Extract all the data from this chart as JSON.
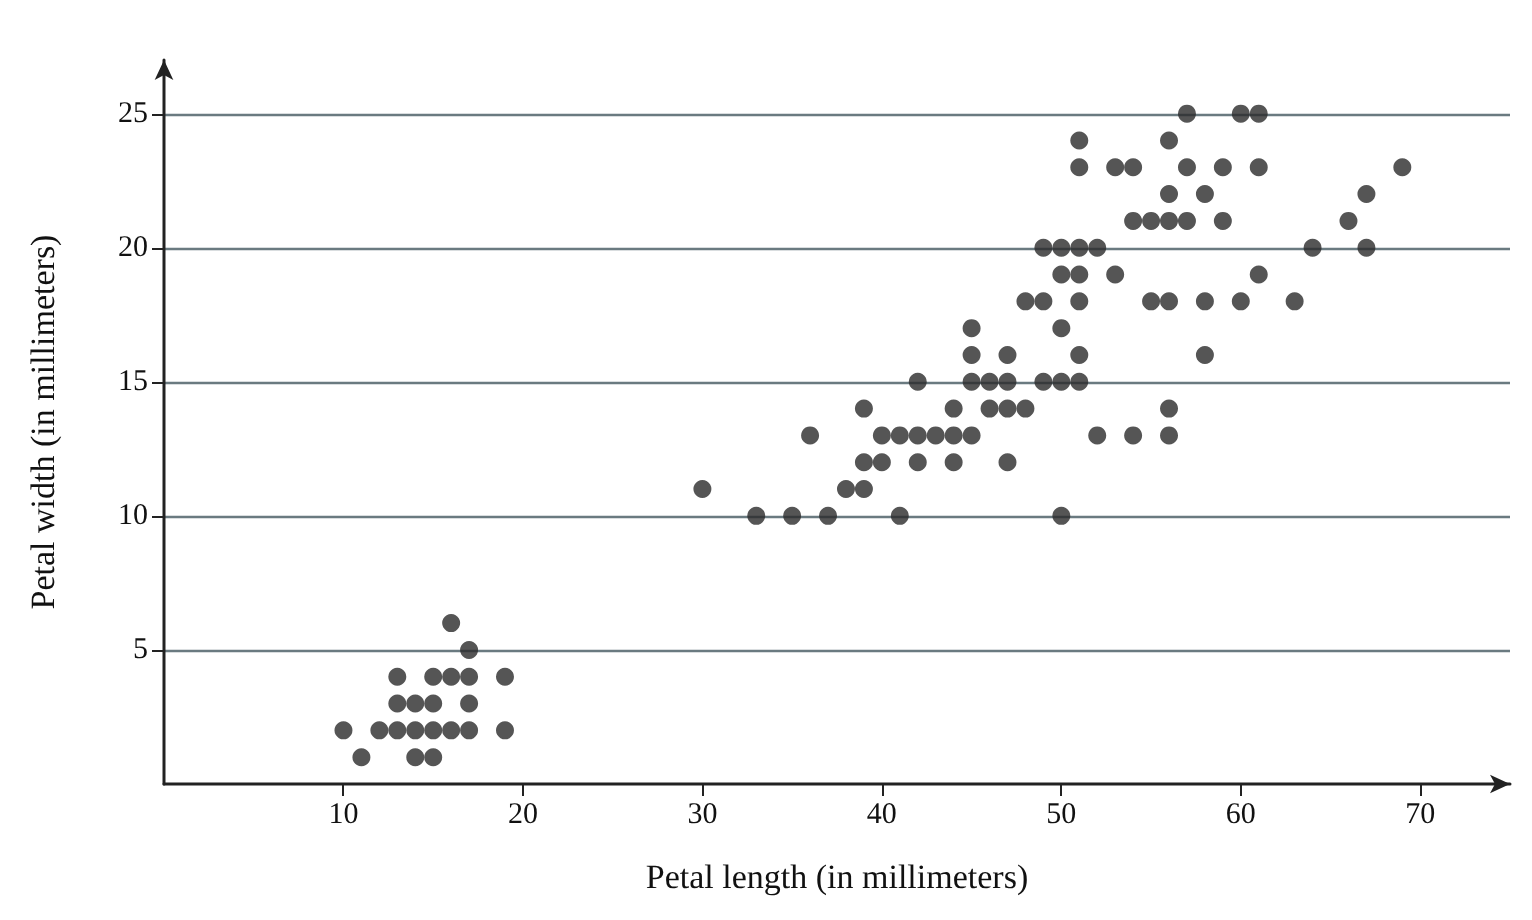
{
  "chart_data": {
    "type": "scatter",
    "xlabel": "Petal length (in millimeters)",
    "ylabel": "Petal width (in millimeters)",
    "xlim": [
      0,
      75
    ],
    "xticks": [
      10,
      20,
      30,
      40,
      50,
      60,
      70
    ],
    "ylim": [
      0,
      27
    ],
    "yticks": [
      5,
      10,
      15,
      20,
      25
    ],
    "grid": "y",
    "marker": "circle",
    "series": [
      {
        "color": "#2b2b2b",
        "x": [
          16,
          17,
          13,
          15,
          16,
          17,
          19,
          13,
          14,
          15,
          17,
          10,
          12,
          13,
          14,
          15,
          16,
          17,
          19,
          11,
          14,
          15,
          33,
          35,
          37,
          41,
          50,
          30,
          38,
          39,
          39,
          40,
          42,
          44,
          47,
          36,
          40,
          41,
          42,
          43,
          44,
          45,
          52,
          54,
          56,
          39,
          44,
          46,
          47,
          48,
          56,
          42,
          45,
          46,
          47,
          49,
          50,
          51,
          45,
          47,
          51,
          58,
          45,
          50,
          48,
          49,
          51,
          55,
          56,
          58,
          60,
          63,
          50,
          51,
          53,
          61,
          49,
          50,
          51,
          52,
          64,
          67,
          54,
          55,
          56,
          57,
          59,
          66,
          56,
          58,
          67,
          51,
          53,
          54,
          57,
          59,
          61,
          69,
          51,
          56,
          57,
          60,
          61
        ],
        "values": [
          6,
          5,
          4,
          4,
          4,
          4,
          4,
          3,
          3,
          3,
          3,
          2,
          2,
          2,
          2,
          2,
          2,
          2,
          2,
          1,
          1,
          1,
          10,
          10,
          10,
          10,
          10,
          11,
          11,
          11,
          12,
          12,
          12,
          12,
          12,
          13,
          13,
          13,
          13,
          13,
          13,
          13,
          13,
          13,
          13,
          14,
          14,
          14,
          14,
          14,
          14,
          15,
          15,
          15,
          15,
          15,
          15,
          15,
          16,
          16,
          16,
          16,
          17,
          17,
          18,
          18,
          18,
          18,
          18,
          18,
          18,
          18,
          19,
          19,
          19,
          19,
          20,
          20,
          20,
          20,
          20,
          20,
          21,
          21,
          21,
          21,
          21,
          21,
          22,
          22,
          22,
          23,
          23,
          23,
          23,
          23,
          23,
          23,
          24,
          24,
          25,
          25,
          25
        ]
      }
    ]
  }
}
